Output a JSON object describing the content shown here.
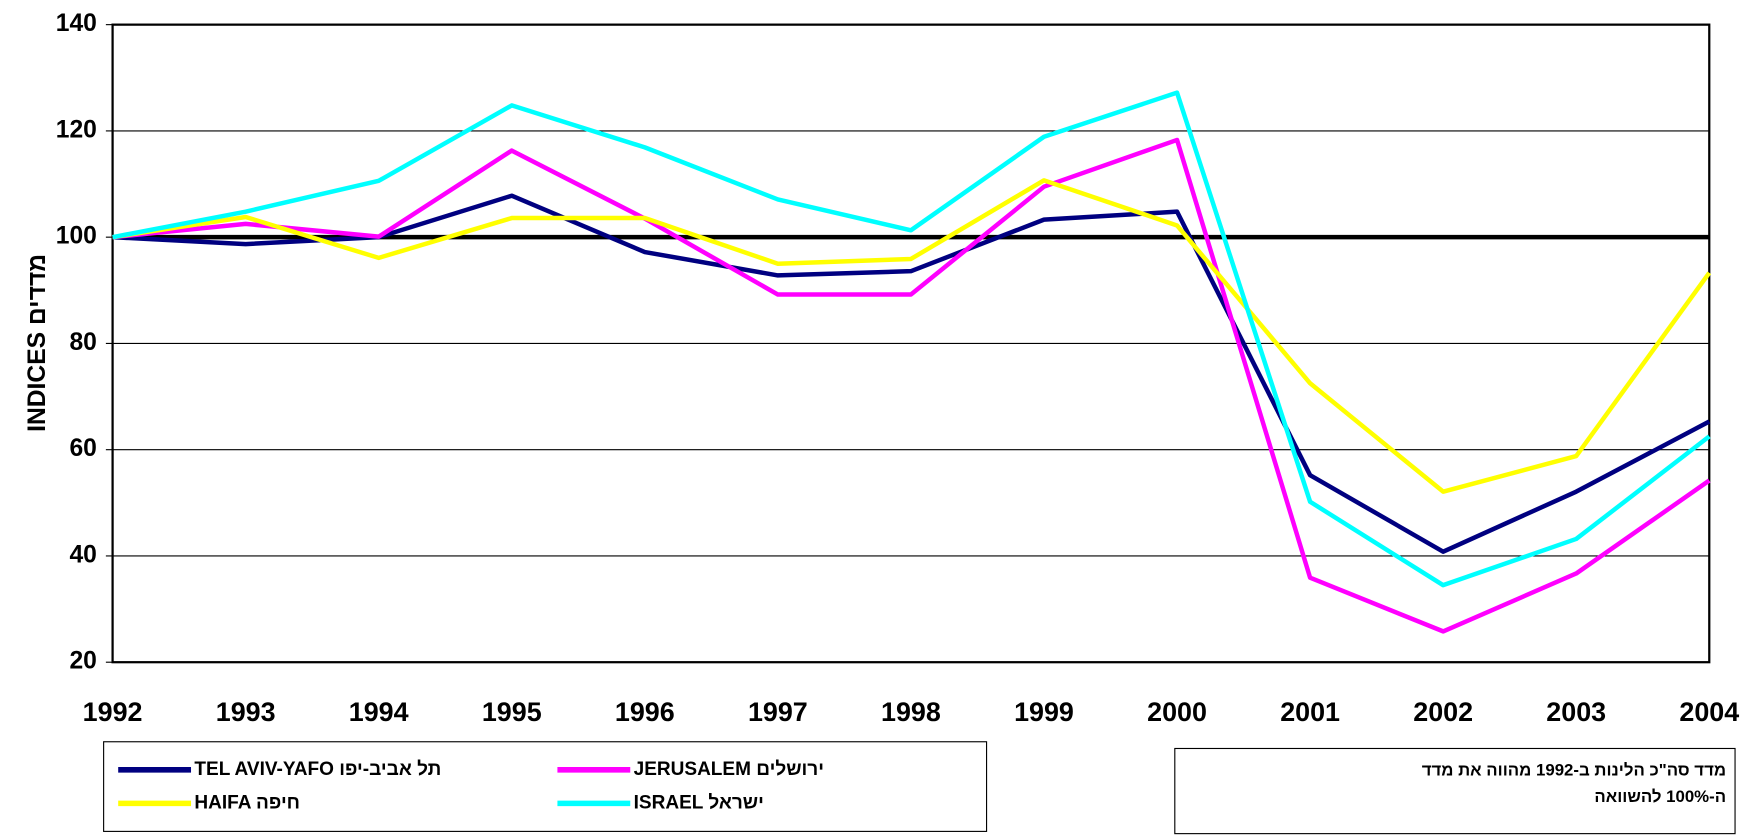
{
  "chart_data": {
    "type": "line",
    "y_label": "INDICES מדדים",
    "categories": [
      1992,
      1993,
      1994,
      1995,
      1996,
      1997,
      1998,
      1999,
      2000,
      2001,
      2002,
      2003,
      2004
    ],
    "series": [
      {
        "name": "TEL AVIV-YAFO תל אביב-יפו",
        "color": "#000080",
        "values": [
          100,
          98.7,
          100,
          107.8,
          97.2,
          92.8,
          93.6,
          103.3,
          104.8,
          55.2,
          40.8,
          52.1,
          65.3
        ]
      },
      {
        "name": "JERUSALEM ירושלים",
        "color": "#ff00ff",
        "values": [
          100,
          102.5,
          100.1,
          116.3,
          103.5,
          89.2,
          89.2,
          109.5,
          118.3,
          35.9,
          25.8,
          36.7,
          54.2
        ]
      },
      {
        "name": "HAIFA חיפה",
        "color": "#ffff00",
        "values": [
          100,
          103.8,
          96.1,
          103.6,
          103.6,
          95,
          95.9,
          110.7,
          102.2,
          72.5,
          52.1,
          58.8,
          93.3
        ]
      },
      {
        "name": "ISRAEL ישראל",
        "color": "#00ffff",
        "values": [
          100,
          104.8,
          110.6,
          124.8,
          116.9,
          107.1,
          101.3,
          118.9,
          127.2,
          50.2,
          34.5,
          43.2,
          62.5
        ]
      }
    ],
    "reference_line": 100,
    "ylim": [
      20,
      140
    ],
    "yticks": [
      20,
      40,
      60,
      80,
      100,
      120,
      140
    ],
    "grid": true,
    "annotation": [
      "מדד סה\"כ הלינות ב-1992 מהווה את מדד",
      "ה-100% להשוואה"
    ]
  }
}
